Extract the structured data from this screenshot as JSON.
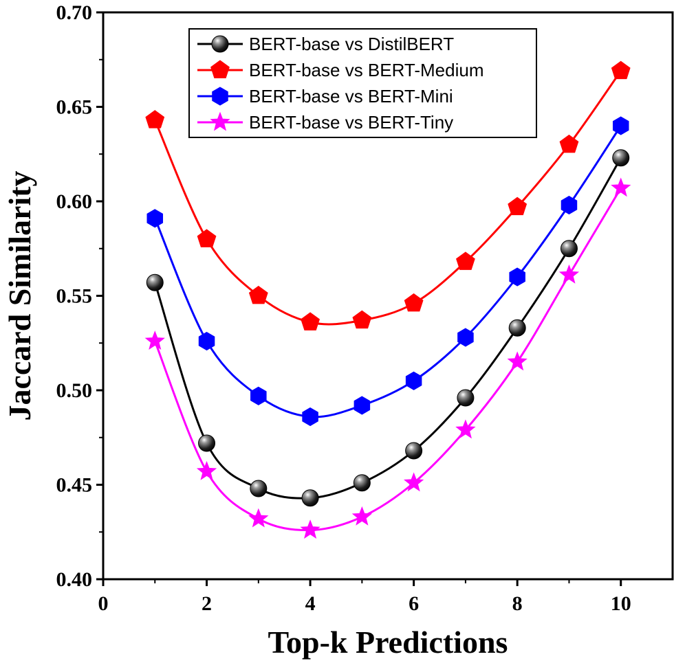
{
  "chart_data": {
    "type": "line",
    "xlabel": "Top-k Predictions",
    "ylabel": "Jaccard Similarity",
    "xlim": [
      0,
      11
    ],
    "ylim": [
      0.4,
      0.7
    ],
    "xticks": [
      0,
      2,
      4,
      6,
      8,
      10
    ],
    "xtick_labels": [
      "0",
      "2",
      "4",
      "6",
      "8",
      "10"
    ],
    "yticks": [
      0.4,
      0.45,
      0.5,
      0.55,
      0.6,
      0.65,
      0.7
    ],
    "ytick_labels": [
      "0.40",
      "0.45",
      "0.50",
      "0.55",
      "0.60",
      "0.65",
      "0.70"
    ],
    "grid": false,
    "legend_position": "top-center",
    "x": [
      1,
      2,
      3,
      4,
      5,
      6,
      7,
      8,
      9,
      10
    ],
    "series": [
      {
        "name": "BERT-base vs DistilBERT",
        "color": "#000000",
        "marker": "sphere",
        "values": [
          0.557,
          0.472,
          0.448,
          0.443,
          0.451,
          0.468,
          0.496,
          0.533,
          0.575,
          0.623
        ]
      },
      {
        "name": "BERT-base vs BERT-Medium",
        "color": "#ff0000",
        "marker": "pentagon",
        "values": [
          0.643,
          0.58,
          0.55,
          0.536,
          0.537,
          0.546,
          0.568,
          0.597,
          0.63,
          0.669
        ]
      },
      {
        "name": "BERT-base vs BERT-Mini",
        "color": "#0000ff",
        "marker": "hexagon",
        "values": [
          0.591,
          0.526,
          0.497,
          0.486,
          0.492,
          0.505,
          0.528,
          0.56,
          0.598,
          0.64
        ]
      },
      {
        "name": "BERT-base vs BERT-Tiny",
        "color": "#ff00ff",
        "marker": "star",
        "values": [
          0.526,
          0.457,
          0.432,
          0.426,
          0.433,
          0.451,
          0.479,
          0.515,
          0.561,
          0.607
        ]
      }
    ]
  }
}
